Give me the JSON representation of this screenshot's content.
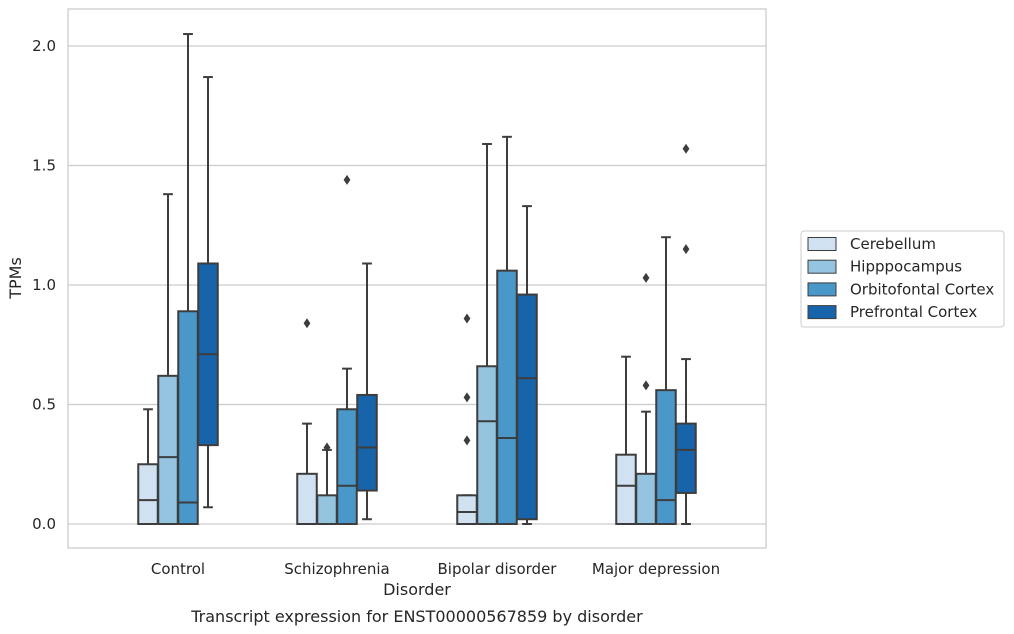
{
  "caption": "Transcript expression for ENST00000567859 by disorder",
  "chart_data": {
    "type": "box",
    "xlabel": "Disorder",
    "ylabel": "TPMs",
    "ylim": [
      -0.1,
      2.15
    ],
    "yticks": [
      "0.0",
      "0.5",
      "1.0",
      "1.5",
      "2.0"
    ],
    "grid": "horizontal",
    "legend_position": "right",
    "categories": [
      "Control",
      "Schizophrenia",
      "Bipolar disorder",
      "Major depression"
    ],
    "series": [
      {
        "name": "Cerebellum",
        "color": "#d0e1f2",
        "boxes": [
          {
            "whislo": 0.0,
            "q1": 0.0,
            "med": 0.1,
            "q3": 0.25,
            "whishi": 0.48,
            "fliers": []
          },
          {
            "whislo": 0.0,
            "q1": 0.0,
            "med": 0.0,
            "q3": 0.21,
            "whishi": 0.42,
            "fliers": [
              0.84
            ]
          },
          {
            "whislo": 0.0,
            "q1": 0.0,
            "med": 0.05,
            "q3": 0.12,
            "whishi": 0.12,
            "fliers": [
              0.35,
              0.53,
              0.86
            ]
          },
          {
            "whislo": 0.0,
            "q1": 0.0,
            "med": 0.16,
            "q3": 0.29,
            "whishi": 0.7,
            "fliers": []
          }
        ]
      },
      {
        "name": "Hipppocampus",
        "color": "#94c4df",
        "boxes": [
          {
            "whislo": 0.0,
            "q1": 0.0,
            "med": 0.28,
            "q3": 0.62,
            "whishi": 1.38,
            "fliers": []
          },
          {
            "whislo": 0.0,
            "q1": 0.0,
            "med": 0.0,
            "q3": 0.12,
            "whishi": 0.31,
            "fliers": [
              0.32
            ]
          },
          {
            "whislo": 0.0,
            "q1": 0.0,
            "med": 0.43,
            "q3": 0.66,
            "whishi": 1.59,
            "fliers": []
          },
          {
            "whislo": 0.0,
            "q1": 0.0,
            "med": 0.0,
            "q3": 0.21,
            "whishi": 0.47,
            "fliers": [
              0.58,
              1.03
            ]
          }
        ]
      },
      {
        "name": "Orbitofontal Cortex",
        "color": "#4a98c9",
        "boxes": [
          {
            "whislo": 0.0,
            "q1": 0.0,
            "med": 0.09,
            "q3": 0.89,
            "whishi": 2.05,
            "fliers": []
          },
          {
            "whislo": 0.0,
            "q1": 0.0,
            "med": 0.16,
            "q3": 0.48,
            "whishi": 0.65,
            "fliers": [
              1.44
            ]
          },
          {
            "whislo": 0.0,
            "q1": 0.0,
            "med": 0.36,
            "q3": 1.06,
            "whishi": 1.62,
            "fliers": []
          },
          {
            "whislo": 0.0,
            "q1": 0.0,
            "med": 0.1,
            "q3": 0.56,
            "whishi": 1.2,
            "fliers": []
          }
        ]
      },
      {
        "name": "Prefrontal Cortex",
        "color": "#1764ab",
        "boxes": [
          {
            "whislo": 0.07,
            "q1": 0.33,
            "med": 0.71,
            "q3": 1.09,
            "whishi": 1.87,
            "fliers": []
          },
          {
            "whislo": 0.02,
            "q1": 0.14,
            "med": 0.32,
            "q3": 0.54,
            "whishi": 1.09,
            "fliers": []
          },
          {
            "whislo": 0.0,
            "q1": 0.02,
            "med": 0.61,
            "q3": 0.96,
            "whishi": 1.33,
            "fliers": []
          },
          {
            "whislo": 0.0,
            "q1": 0.13,
            "med": 0.31,
            "q3": 0.42,
            "whishi": 0.69,
            "fliers": [
              1.15,
              1.57
            ]
          }
        ]
      }
    ]
  }
}
